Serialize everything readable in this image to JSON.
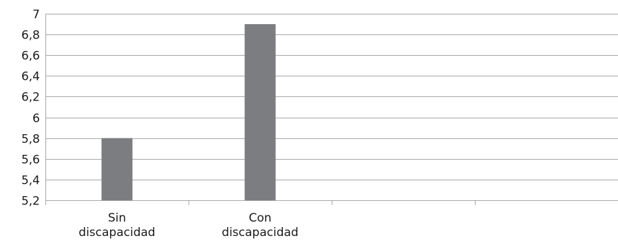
{
  "chart_data": {
    "type": "bar",
    "categories": [
      [
        "Sin",
        "discapacidad"
      ],
      [
        "Con",
        "discapacidad"
      ]
    ],
    "values": [
      5.8,
      6.9
    ],
    "ylim": [
      5.2,
      7
    ],
    "y_step": 0.2,
    "y_tick_labels": [
      "5,2",
      "5,4",
      "5,6",
      "5,8",
      "6",
      "6,2",
      "6,4",
      "6,6",
      "6,8",
      "7"
    ],
    "grid": true,
    "bar_color": "#7b7d80",
    "grid_color": "#a6a6a6",
    "axis_color": "#a6a6a6",
    "category_slots": 4
  }
}
